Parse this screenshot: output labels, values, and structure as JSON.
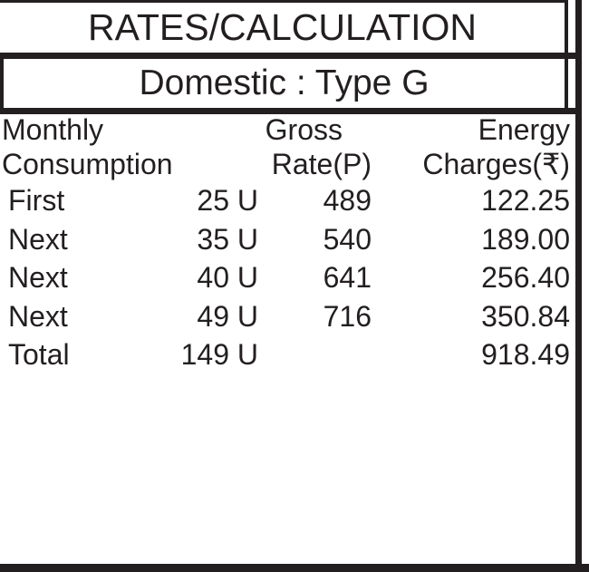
{
  "title": "RATES/CALCULATION",
  "subtitle": "Domestic : Type G",
  "table": {
    "headers": {
      "consumption_line1": "Monthly",
      "consumption_line2": "Consumption",
      "rate_line1": "Gross",
      "rate_line2": "Rate(P)",
      "charges_line1": "Energy",
      "charges_line2": "Charges(₹)"
    },
    "rows": [
      {
        "label": "First",
        "units": "25 U",
        "rate": "489",
        "charges": "122.25"
      },
      {
        "label": "Next",
        "units": "35 U",
        "rate": "540",
        "charges": "189.00"
      },
      {
        "label": "Next",
        "units": "40 U",
        "rate": "641",
        "charges": "256.40"
      },
      {
        "label": "Next",
        "units": "49 U",
        "rate": "716",
        "charges": "350.84"
      },
      {
        "label": "Total",
        "units": "149 U",
        "rate": "",
        "charges": "918.49"
      }
    ]
  },
  "colors": {
    "ink": "#231f20",
    "background": "#ffffff"
  }
}
